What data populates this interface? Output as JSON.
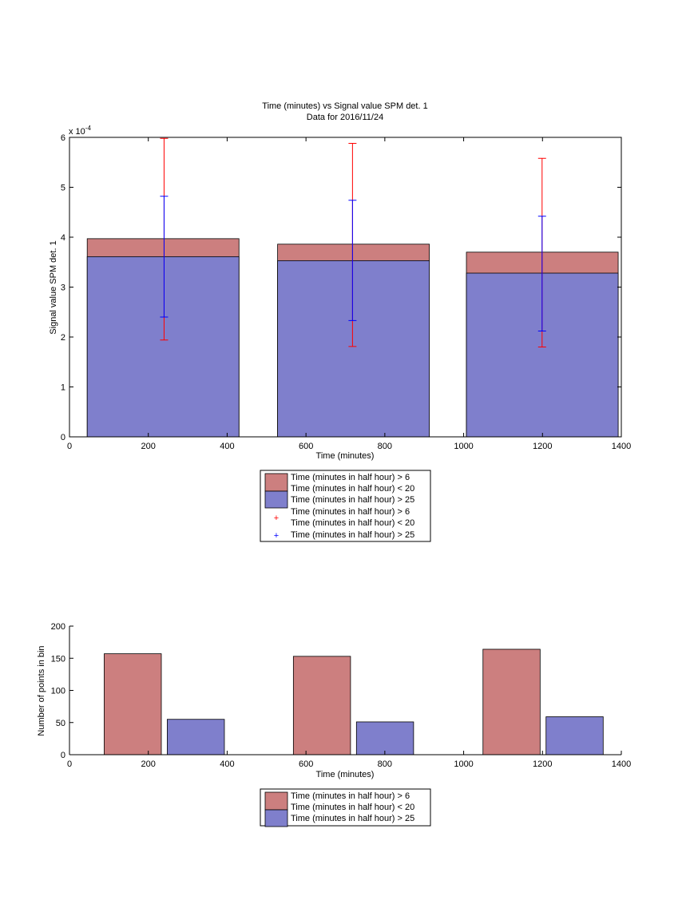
{
  "colors": {
    "bar_red": "#cc7f7f",
    "bar_blue": "#7f7fcc",
    "err_red": "#ff0000",
    "err_blue": "#0000ff"
  },
  "chart_data": [
    {
      "type": "bar",
      "subtype": "overlaid bars with error bars",
      "title": "Time (minutes) vs Signal value SPM det. 1",
      "subtitle": "Data for 2016/11/24",
      "xlabel": "Time (minutes)",
      "ylabel": "Signal value SPM det. 1",
      "y_exponent_label": "x 10",
      "y_exponent_power": "-4",
      "xlim": [
        0,
        1400
      ],
      "ylim": [
        0,
        6
      ],
      "y_scale_note": "values in units of 1e-4",
      "xticks": [
        0,
        200,
        400,
        600,
        800,
        1000,
        1200,
        1400
      ],
      "yticks": [
        0,
        1,
        2,
        3,
        4,
        5,
        6
      ],
      "bars": [
        {
          "x0": 45,
          "x1": 430,
          "red": 3.97,
          "blue": 3.61
        },
        {
          "x0": 528,
          "x1": 913,
          "red": 3.86,
          "blue": 3.53
        },
        {
          "x0": 1007,
          "x1": 1392,
          "red": 3.7,
          "blue": 3.28
        }
      ],
      "errorbars": [
        {
          "x": 240,
          "red_low": 1.94,
          "red_high": 5.98,
          "blue_low": 2.4,
          "blue_high": 4.82
        },
        {
          "x": 718,
          "red_low": 1.81,
          "red_high": 5.88,
          "blue_low": 2.33,
          "blue_high": 4.74
        },
        {
          "x": 1199,
          "red_low": 1.8,
          "red_high": 5.58,
          "blue_low": 2.12,
          "blue_high": 4.42
        }
      ],
      "legend": {
        "placement": "below",
        "entries": [
          {
            "line1": "Time (minutes in half hour) > 6",
            "line2": "Time (minutes in half hour) < 20",
            "marker": "patch-red"
          },
          {
            "line1": "Time (minutes in half hour) > 25",
            "marker": "patch-blue"
          },
          {
            "line1": "Time (minutes in half hour) > 6",
            "line2": "Time (minutes in half hour) < 20",
            "marker": "plus-red"
          },
          {
            "line1": "Time (minutes in half hour) > 25",
            "marker": "plus-blue"
          }
        ]
      }
    },
    {
      "type": "bar",
      "subtype": "grouped",
      "title": "",
      "xlabel": "Time (minutes)",
      "ylabel": "Number of points in bin",
      "xlim": [
        0,
        1400
      ],
      "ylim": [
        0,
        200
      ],
      "xticks": [
        0,
        200,
        400,
        600,
        800,
        1000,
        1200,
        1400
      ],
      "yticks": [
        0,
        50,
        100,
        150,
        200
      ],
      "bars": [
        {
          "x0": 88,
          "x1": 233,
          "value": 157,
          "color": "red"
        },
        {
          "x0": 248,
          "x1": 393,
          "value": 55,
          "color": "blue"
        },
        {
          "x0": 568,
          "x1": 713,
          "value": 153,
          "color": "red"
        },
        {
          "x0": 728,
          "x1": 873,
          "value": 51,
          "color": "blue"
        },
        {
          "x0": 1049,
          "x1": 1194,
          "value": 164,
          "color": "red"
        },
        {
          "x0": 1209,
          "x1": 1354,
          "value": 59,
          "color": "blue"
        }
      ],
      "legend": {
        "placement": "below",
        "entries": [
          {
            "line1": "Time (minutes in half hour) > 6",
            "line2": "Time (minutes in half hour) < 20",
            "marker": "patch-red"
          },
          {
            "line1": "Time (minutes in half hour) > 25",
            "marker": "patch-blue"
          }
        ]
      }
    }
  ]
}
